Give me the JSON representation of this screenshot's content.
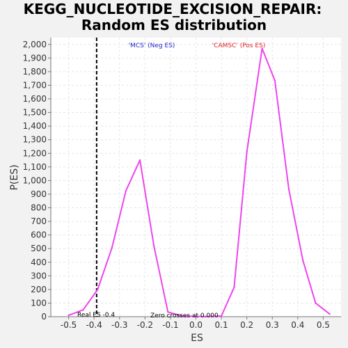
{
  "chart_data": {
    "type": "line",
    "title_line1": "KEGG_NUCLEOTIDE_EXCISION_REPAIR:",
    "title_line2": "Random ES distribution",
    "xlabel": "ES",
    "ylabel": "P(ES)",
    "xlim": [
      -0.57,
      0.57
    ],
    "ylim": [
      0,
      2050
    ],
    "xticks": [
      -0.5,
      -0.4,
      -0.3,
      -0.2,
      -0.1,
      0.0,
      0.1,
      0.2,
      0.3,
      0.4,
      0.5
    ],
    "xtick_labels": [
      "-0.5",
      "-0.4",
      "-0.3",
      "-0.2",
      "-0.1",
      "0.0",
      "0.1",
      "0.2",
      "0.3",
      "0.4",
      "0.5"
    ],
    "yticks": [
      0,
      100,
      200,
      300,
      400,
      500,
      600,
      700,
      800,
      900,
      1000,
      1100,
      1200,
      1300,
      1400,
      1500,
      1600,
      1700,
      1800,
      1900,
      2000
    ],
    "ytick_labels": [
      "0",
      "100",
      "200",
      "300",
      "400",
      "500",
      "600",
      "700",
      "800",
      "900",
      "1,000",
      "1,100",
      "1,200",
      "1,300",
      "1,400",
      "1,500",
      "1,600",
      "1,700",
      "1,800",
      "1,900",
      "2,000"
    ],
    "grid": true,
    "series": [
      {
        "color": "#ee44ee",
        "x": [
          -0.5,
          -0.443,
          -0.386,
          -0.33,
          -0.275,
          -0.22,
          -0.165,
          -0.11,
          -0.055,
          0.0,
          0.05,
          0.1,
          0.15,
          0.2,
          0.26,
          0.31,
          0.365,
          0.42,
          0.47,
          0.525
        ],
        "y": [
          10,
          50,
          200,
          505,
          925,
          1150,
          520,
          35,
          5,
          2,
          1,
          5,
          215,
          1210,
          1970,
          1735,
          935,
          415,
          100,
          20
        ]
      }
    ],
    "real_es": {
      "x": -0.39,
      "label": "Real ES -0.4",
      "color": "#000000"
    },
    "annotations": [
      {
        "text": "'MCS' (Neg ES)",
        "color": "#2222cc"
      },
      {
        "text": "'CAMSC' (Pos ES)",
        "color": "#dd2222"
      },
      {
        "text": "Zero crosses at 0.000",
        "color": "#000000"
      }
    ]
  }
}
